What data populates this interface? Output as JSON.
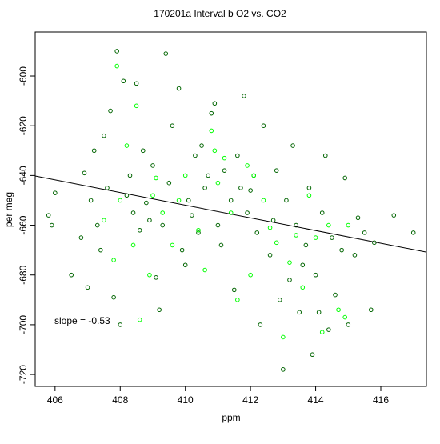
{
  "chart_data": {
    "type": "scatter",
    "title": "170201a   Interval b O2 vs. CO2",
    "x_label": "ppm",
    "y_label": "per meg",
    "annotation": "slope =  -0.53",
    "xlim": [
      405.39,
      417.4
    ],
    "ylim": [
      -724.8,
      -582.3
    ],
    "xticks": [
      406,
      408,
      410,
      412,
      414,
      416
    ],
    "yticks": [
      -720,
      -700,
      -680,
      -660,
      -640,
      -620,
      -600
    ],
    "fit_line": {
      "x": [
        405.39,
        417.4
      ],
      "y": [
        -640.2,
        -670.8
      ],
      "color": "#000000"
    },
    "series": [
      {
        "color": "#006400",
        "x": [
          406.0,
          405.8,
          405.9,
          406.5,
          406.8,
          406.9,
          407.0,
          407.2,
          407.3,
          407.5,
          407.6,
          407.7,
          407.8,
          407.9,
          408.0,
          408.1,
          408.3,
          408.4,
          408.5,
          408.6,
          408.8,
          409.0,
          409.1,
          409.2,
          409.4,
          409.5,
          409.6,
          409.8,
          410.0,
          410.1,
          410.3,
          410.5,
          410.6,
          410.8,
          410.9,
          411.0,
          411.2,
          411.4,
          411.5,
          411.6,
          411.8,
          411.9,
          412.0,
          412.2,
          412.3,
          412.4,
          412.6,
          412.8,
          412.9,
          413.0,
          413.1,
          413.3,
          413.4,
          413.5,
          413.7,
          413.8,
          413.9,
          414.0,
          414.2,
          414.3,
          414.5,
          414.6,
          414.8,
          414.9,
          415.0,
          415.2,
          415.3,
          415.5,
          415.7,
          415.8,
          416.4,
          417.0,
          407.4,
          408.2,
          409.3,
          410.2,
          411.1,
          412.7,
          413.6,
          414.4,
          408.7,
          409.9,
          410.7,
          411.7,
          412.1,
          413.2,
          414.1,
          407.1,
          408.9,
          410.4
        ],
        "y": [
          -647,
          -656,
          -660,
          -680,
          -665,
          -639,
          -685,
          -630,
          -660,
          -624,
          -645,
          -614,
          -689,
          -590,
          -700,
          -602,
          -640,
          -655,
          -603,
          -662,
          -651,
          -636,
          -681,
          -694,
          -591,
          -643,
          -620,
          -605,
          -676,
          -650,
          -632,
          -628,
          -645,
          -615,
          -611,
          -660,
          -638,
          -650,
          -686,
          -632,
          -608,
          -655,
          -646,
          -663,
          -700,
          -620,
          -672,
          -638,
          -690,
          -718,
          -650,
          -628,
          -660,
          -695,
          -668,
          -645,
          -712,
          -680,
          -655,
          -632,
          -665,
          -688,
          -670,
          -641,
          -700,
          -672,
          -657,
          -663,
          -694,
          -667,
          -656,
          -663,
          -670,
          -648,
          -660,
          -656,
          -668,
          -658,
          -676,
          -702,
          -630,
          -670,
          -640,
          -645,
          -640,
          -682,
          -695,
          -650,
          -658,
          -663
        ]
      },
      {
        "color": "#00ff00",
        "x": [
          407.9,
          408.5,
          408.0,
          408.4,
          409.0,
          409.6,
          410.0,
          410.4,
          410.8,
          411.0,
          411.4,
          411.6,
          412.1,
          412.4,
          412.8,
          413.0,
          413.2,
          413.6,
          414.0,
          414.2,
          414.7,
          415.0,
          407.5,
          408.2,
          408.6,
          409.3,
          409.8,
          410.6,
          411.2,
          412.0,
          412.6,
          413.4,
          414.4,
          407.8,
          409.1,
          410.9,
          411.9,
          413.8,
          414.9,
          408.9
        ],
        "y": [
          -596,
          -612,
          -650,
          -668,
          -648,
          -668,
          -640,
          -662,
          -622,
          -643,
          -655,
          -690,
          -640,
          -650,
          -667,
          -705,
          -675,
          -685,
          -665,
          -703,
          -694,
          -660,
          -658,
          -628,
          -698,
          -655,
          -650,
          -678,
          -633,
          -680,
          -661,
          -664,
          -660,
          -674,
          -641,
          -630,
          -636,
          -648,
          -697,
          -680
        ]
      }
    ]
  }
}
